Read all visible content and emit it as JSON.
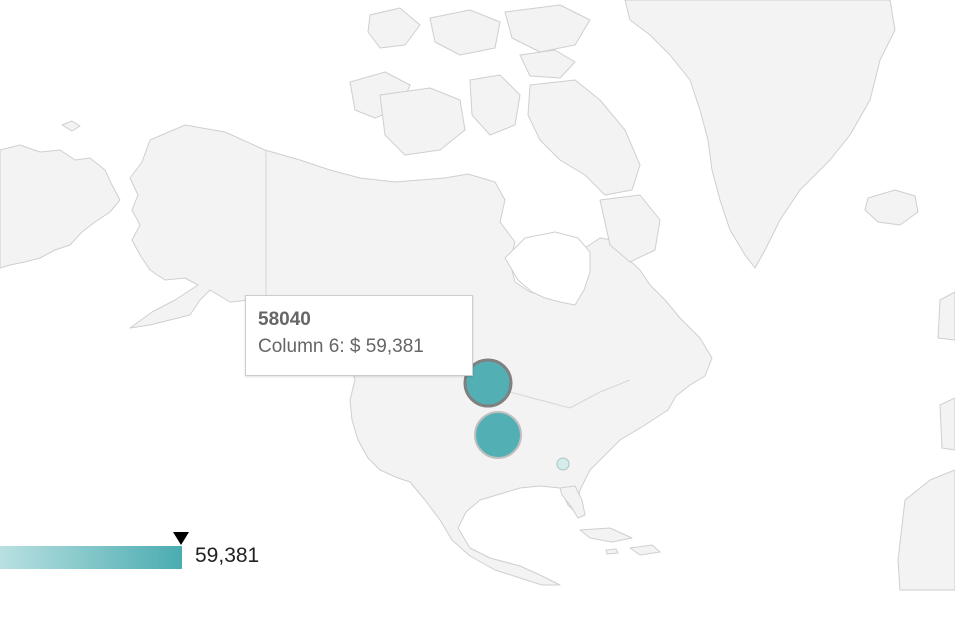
{
  "map": {
    "type": "geo-bubble-map",
    "region": "North America",
    "land_color": "#f3f3f3",
    "border_color": "#cfcfcf",
    "bubble_color": "#4aacb1",
    "markers": [
      {
        "id": "58040",
        "value": 59381,
        "size": "large",
        "highlighted": true
      },
      {
        "id": "",
        "value": null,
        "size": "large",
        "highlighted": false
      },
      {
        "id": "",
        "value": null,
        "size": "small",
        "highlighted": false
      }
    ]
  },
  "tooltip": {
    "title": "58040",
    "label": "Column 6: $ 59,381"
  },
  "legend": {
    "gradient_start": "#b9e0e1",
    "gradient_end": "#4aacb1",
    "marker_fraction": 1.0,
    "max_label": "59,381"
  }
}
